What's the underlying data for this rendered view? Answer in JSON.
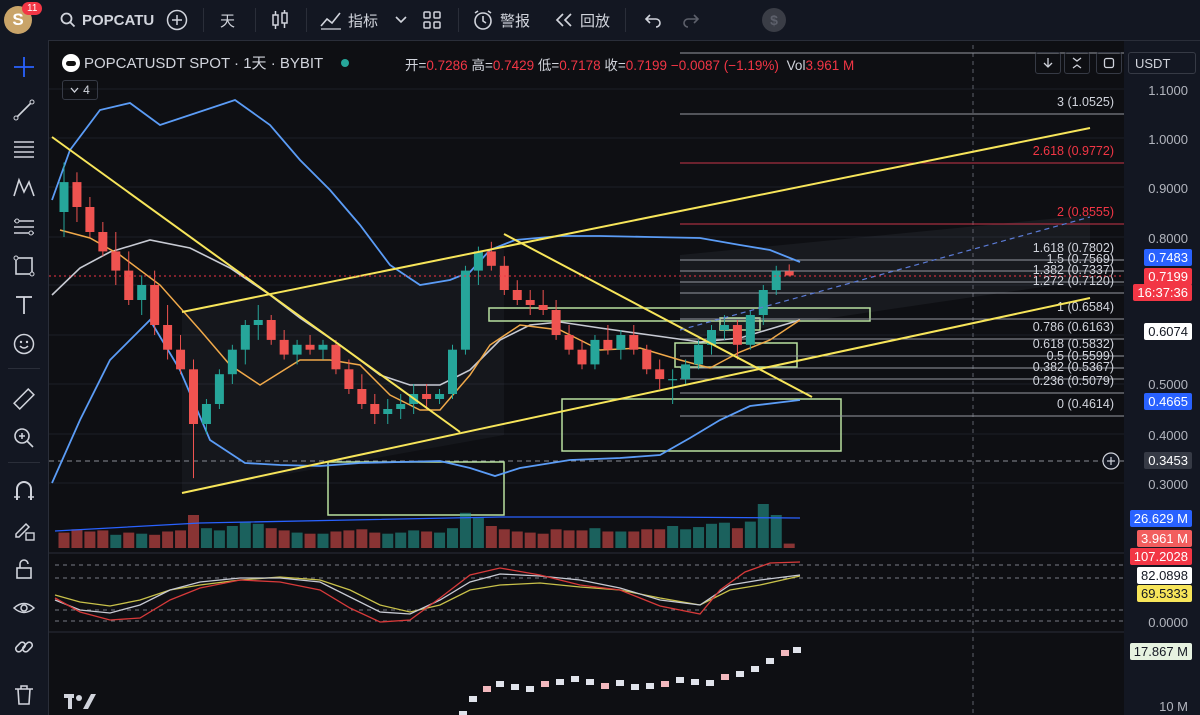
{
  "app": {
    "avatar_letter": "S",
    "notifications": "11",
    "symbol_search": "POPCATU",
    "interval": "天",
    "indicators_label": "指标",
    "alerts_label": "警报",
    "replay_label": "回放"
  },
  "legend": {
    "title": "POPCATUSDT SPOT · 1天 · BYBIT",
    "open_label": "开=",
    "open": "0.7286",
    "high_label": "高=",
    "high": "0.7429",
    "low_label": "低=",
    "low": "0.7178",
    "close_label": "收=",
    "close": "0.7199",
    "change": "−0.0087 (−1.19%)",
    "vol_label": "Vol",
    "vol": "3.961 M",
    "indicators_count": "4"
  },
  "currency": "USDT",
  "price_axis": [
    "1.1000",
    "1.0000",
    "0.9000",
    "0.8000",
    "0.5000",
    "0.4000",
    "0.3000"
  ],
  "price_labels": {
    "bb_upper": "0.7483",
    "last_price": "0.7199",
    "countdown": "16:37:36",
    "bb_mid": "0.6074",
    "bb_lower": "0.4665",
    "crosshair": "0.3453",
    "vol_ma": "26.629 M",
    "vol_last": "3.961 M",
    "osc_red": "107.2028",
    "osc_white": "82.0898",
    "osc_yellow": "69.5333",
    "osc_zero": "0.0000",
    "obv_value": "17.867 M",
    "obv_axis": "10 M"
  },
  "fib_levels": [
    {
      "label": "3 (1.0525)",
      "price": 1.0525,
      "color": "#d1d4dc"
    },
    {
      "label": "2.618 (0.9772)",
      "price": 0.9772,
      "color": "#f23645"
    },
    {
      "label": "2 (0.8555)",
      "price": 0.8555,
      "color": "#f23645"
    },
    {
      "label": "1.618 (0.7802)",
      "price": 0.7802,
      "color": "#d1d4dc"
    },
    {
      "label": "1.5 (0.7569)",
      "price": 0.7569,
      "color": "#d1d4dc"
    },
    {
      "label": "1.382 (0.7337)",
      "price": 0.7337,
      "color": "#d1d4dc"
    },
    {
      "label": "1.272 (0.7120)",
      "price": 0.712,
      "color": "#d1d4dc"
    },
    {
      "label": "1 (0.6584)",
      "price": 0.6584,
      "color": "#d1d4dc"
    },
    {
      "label": "0.786 (0.6163)",
      "price": 0.6163,
      "color": "#d1d4dc"
    },
    {
      "label": "0.618 (0.5832)",
      "price": 0.5832,
      "color": "#d1d4dc"
    },
    {
      "label": "0.5 (0.5599)",
      "price": 0.5599,
      "color": "#d1d4dc"
    },
    {
      "label": "0.382 (0.5367)",
      "price": 0.5367,
      "color": "#d1d4dc"
    },
    {
      "label": "0.236 (0.5079)",
      "price": 0.5079,
      "color": "#d1d4dc"
    },
    {
      "label": "0 (0.4614)",
      "price": 0.4614,
      "color": "#d1d4dc"
    }
  ],
  "colors": {
    "up": "#26a69a",
    "down": "#ef5350",
    "bb": "#5b9cf6",
    "trend": "#f7e55a",
    "box": "#b8e0a0",
    "accent": "#2962ff"
  },
  "candles": [
    [
      0.85,
      0.95,
      0.8,
      0.91
    ],
    [
      0.91,
      0.93,
      0.83,
      0.86
    ],
    [
      0.86,
      0.88,
      0.8,
      0.81
    ],
    [
      0.81,
      0.83,
      0.76,
      0.77
    ],
    [
      0.77,
      0.81,
      0.7,
      0.73
    ],
    [
      0.73,
      0.77,
      0.66,
      0.67
    ],
    [
      0.67,
      0.72,
      0.64,
      0.7
    ],
    [
      0.7,
      0.73,
      0.6,
      0.62
    ],
    [
      0.62,
      0.66,
      0.55,
      0.57
    ],
    [
      0.57,
      0.6,
      0.52,
      0.53
    ],
    [
      0.53,
      0.55,
      0.31,
      0.42
    ],
    [
      0.42,
      0.47,
      0.4,
      0.46
    ],
    [
      0.46,
      0.53,
      0.45,
      0.52
    ],
    [
      0.52,
      0.58,
      0.5,
      0.57
    ],
    [
      0.57,
      0.63,
      0.54,
      0.62
    ],
    [
      0.62,
      0.66,
      0.59,
      0.63
    ],
    [
      0.63,
      0.64,
      0.58,
      0.59
    ],
    [
      0.59,
      0.61,
      0.55,
      0.56
    ],
    [
      0.56,
      0.59,
      0.54,
      0.58
    ],
    [
      0.58,
      0.6,
      0.56,
      0.57
    ],
    [
      0.57,
      0.59,
      0.55,
      0.58
    ],
    [
      0.58,
      0.59,
      0.52,
      0.53
    ],
    [
      0.53,
      0.55,
      0.48,
      0.49
    ],
    [
      0.49,
      0.52,
      0.45,
      0.46
    ],
    [
      0.46,
      0.48,
      0.42,
      0.44
    ],
    [
      0.44,
      0.47,
      0.42,
      0.45
    ],
    [
      0.45,
      0.48,
      0.43,
      0.46
    ],
    [
      0.46,
      0.5,
      0.44,
      0.48
    ],
    [
      0.48,
      0.5,
      0.45,
      0.47
    ],
    [
      0.47,
      0.49,
      0.46,
      0.48
    ],
    [
      0.48,
      0.58,
      0.47,
      0.57
    ],
    [
      0.57,
      0.74,
      0.56,
      0.73
    ],
    [
      0.73,
      0.78,
      0.7,
      0.77
    ],
    [
      0.77,
      0.79,
      0.73,
      0.74
    ],
    [
      0.74,
      0.76,
      0.68,
      0.69
    ],
    [
      0.69,
      0.71,
      0.66,
      0.67
    ],
    [
      0.67,
      0.69,
      0.64,
      0.66
    ],
    [
      0.66,
      0.69,
      0.64,
      0.65
    ],
    [
      0.65,
      0.67,
      0.59,
      0.6
    ],
    [
      0.6,
      0.62,
      0.56,
      0.57
    ],
    [
      0.57,
      0.59,
      0.53,
      0.54
    ],
    [
      0.54,
      0.6,
      0.53,
      0.59
    ],
    [
      0.59,
      0.62,
      0.56,
      0.57
    ],
    [
      0.57,
      0.61,
      0.55,
      0.6
    ],
    [
      0.6,
      0.62,
      0.56,
      0.57
    ],
    [
      0.57,
      0.58,
      0.52,
      0.53
    ],
    [
      0.53,
      0.55,
      0.49,
      0.51
    ],
    [
      0.51,
      0.53,
      0.46,
      0.51
    ],
    [
      0.51,
      0.55,
      0.5,
      0.54
    ],
    [
      0.54,
      0.59,
      0.53,
      0.58
    ],
    [
      0.58,
      0.62,
      0.56,
      0.61
    ],
    [
      0.61,
      0.64,
      0.59,
      0.62
    ],
    [
      0.62,
      0.63,
      0.55,
      0.58
    ],
    [
      0.58,
      0.65,
      0.57,
      0.64
    ],
    [
      0.64,
      0.7,
      0.62,
      0.69
    ],
    [
      0.69,
      0.74,
      0.68,
      0.73
    ],
    [
      0.7286,
      0.7429,
      0.7178,
      0.7199
    ]
  ],
  "volumes": [
    14,
    17,
    15,
    16,
    12,
    14,
    13,
    12,
    15,
    16,
    30,
    18,
    16,
    20,
    24,
    22,
    18,
    16,
    14,
    13,
    13,
    15,
    16,
    17,
    14,
    13,
    14,
    16,
    15,
    14,
    18,
    32,
    28,
    20,
    17,
    15,
    14,
    13,
    17,
    16,
    16,
    18,
    15,
    15,
    15,
    17,
    17,
    20,
    17,
    19,
    22,
    23,
    18,
    24,
    40,
    30,
    4
  ],
  "volume_colors_up": [
    0,
    0,
    0,
    0,
    1,
    0,
    1,
    0,
    0,
    0,
    0,
    1,
    1,
    1,
    1,
    1,
    0,
    0,
    1,
    0,
    1,
    0,
    0,
    0,
    0,
    1,
    1,
    1,
    0,
    1,
    1,
    1,
    1,
    0,
    0,
    0,
    0,
    0,
    0,
    0,
    0,
    1,
    0,
    1,
    0,
    0,
    0,
    1,
    1,
    1,
    1,
    1,
    0,
    1,
    1,
    1,
    0
  ]
}
